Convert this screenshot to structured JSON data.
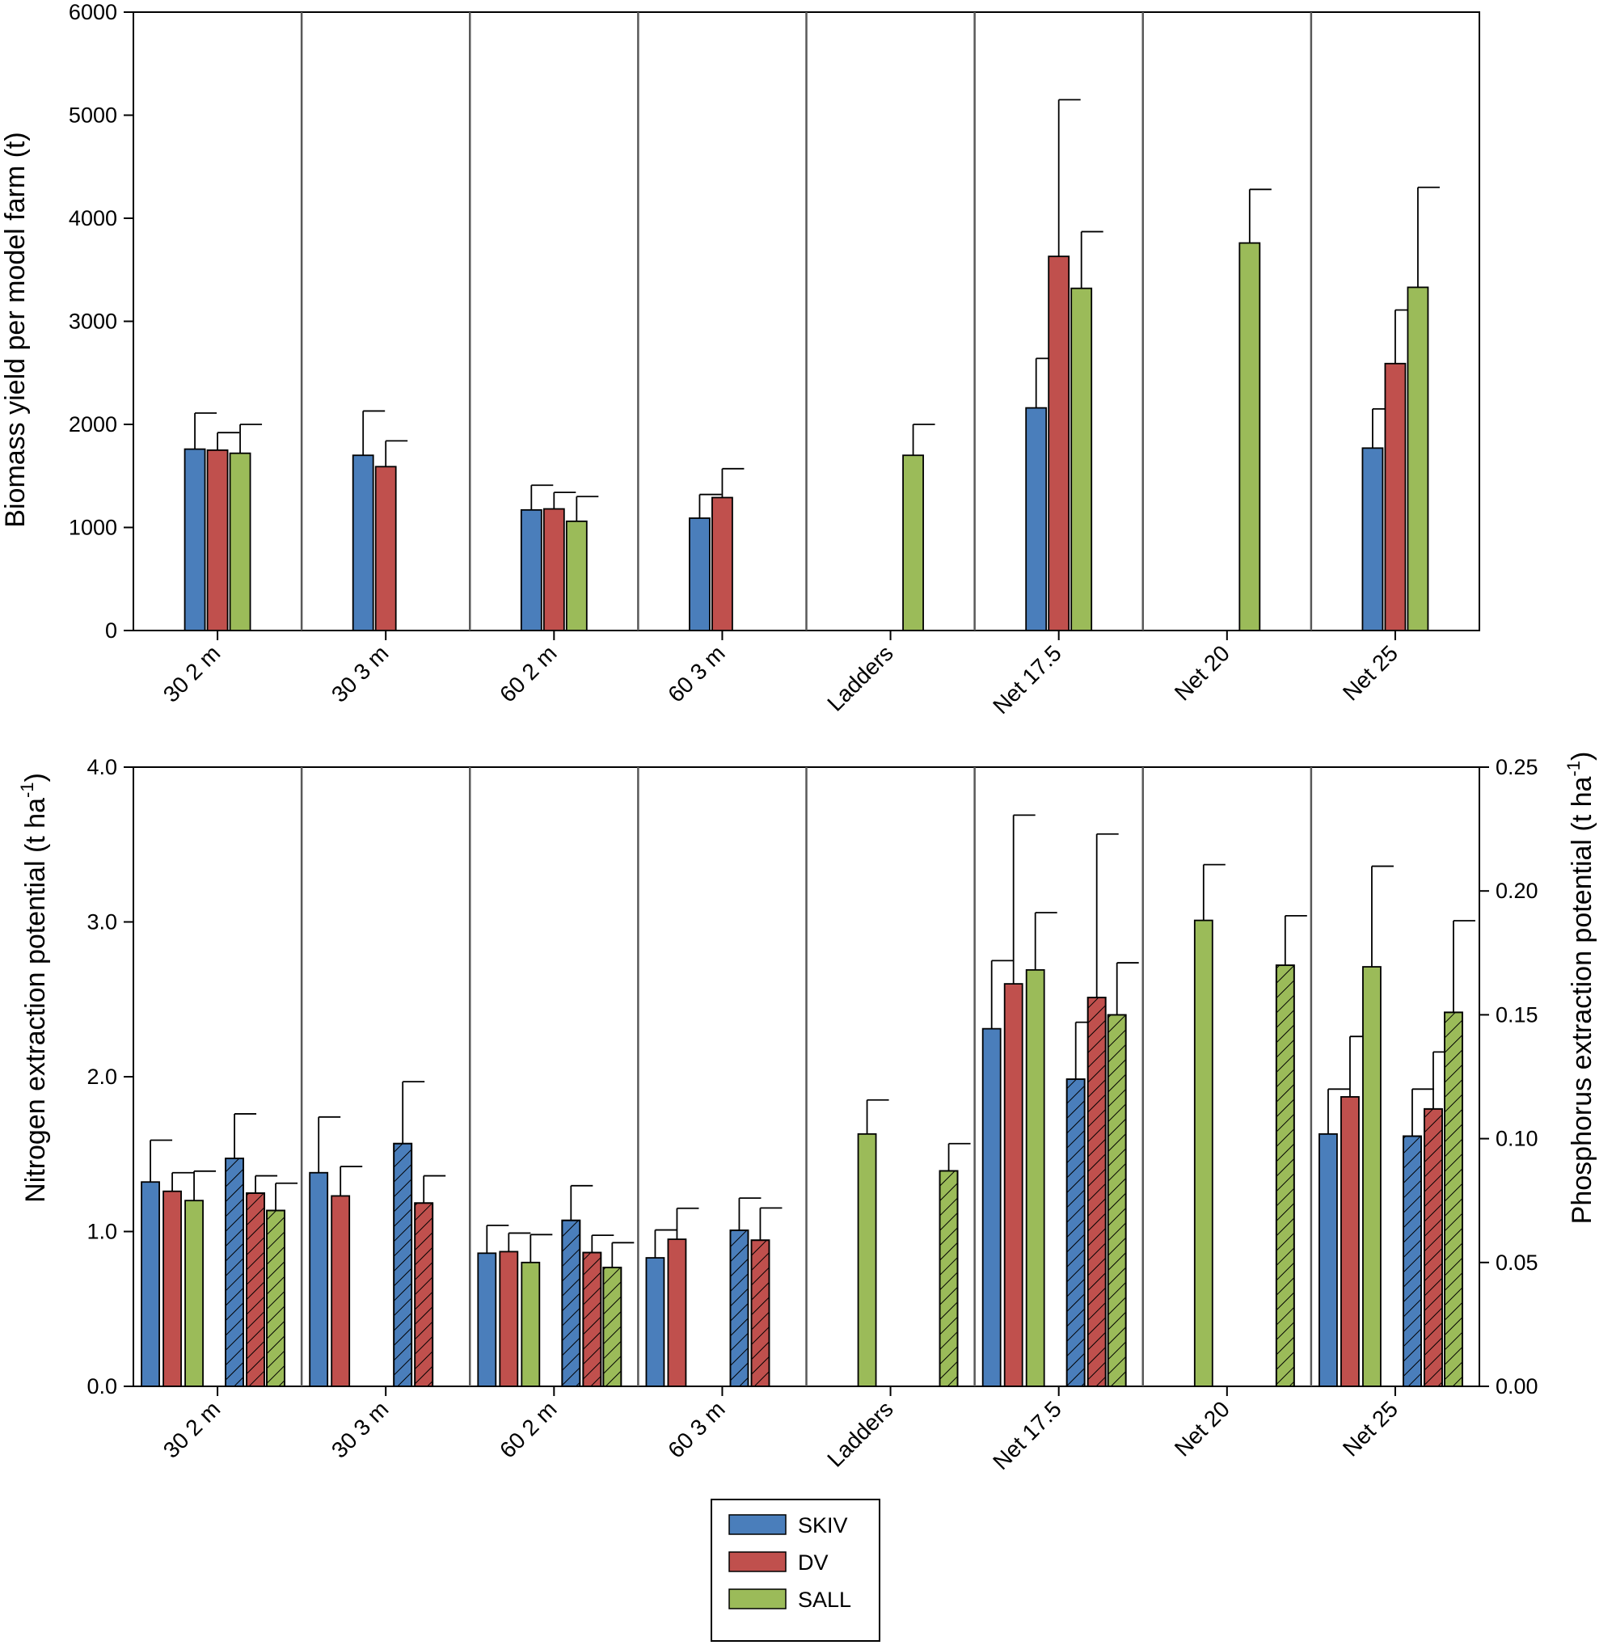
{
  "colors": {
    "SKIV": "#4a7ebb",
    "DV": "#c0504d",
    "SALL": "#9bbb59",
    "frame": "#000000",
    "divider": "#595959"
  },
  "legend": {
    "entries": [
      {
        "key": "SKIV",
        "label": "SKIV"
      },
      {
        "key": "DV",
        "label": "DV"
      },
      {
        "key": "SALL",
        "label": "SALL"
      }
    ]
  },
  "chart_data": [
    {
      "id": "biomass",
      "type": "bar",
      "ylabel": "Biomass yield per model farm (t)",
      "ylim": [
        0,
        6000
      ],
      "yticks": [
        0,
        1000,
        2000,
        3000,
        4000,
        5000,
        6000
      ],
      "ytick_labels": [
        "0",
        "1000",
        "2000",
        "3000",
        "4000",
        "5000",
        "6000"
      ],
      "categories": [
        "30 2 m",
        "30 3 m",
        "60 2 m",
        "60 3 m",
        "Ladders",
        "Net 17.5",
        "Net 20",
        "Net 25"
      ],
      "series": [
        {
          "name": "SKIV",
          "values": [
            1760,
            1700,
            1170,
            1090,
            null,
            2160,
            null,
            1770
          ],
          "errors": [
            350,
            430,
            240,
            230,
            null,
            480,
            null,
            380
          ]
        },
        {
          "name": "DV",
          "values": [
            1750,
            1590,
            1180,
            1290,
            null,
            3630,
            null,
            2590
          ],
          "errors": [
            170,
            250,
            160,
            280,
            null,
            1520,
            null,
            520
          ]
        },
        {
          "name": "SALL",
          "values": [
            1720,
            null,
            1060,
            null,
            1700,
            3320,
            3760,
            3330
          ],
          "errors": [
            280,
            null,
            240,
            null,
            300,
            550,
            520,
            970
          ]
        }
      ]
    },
    {
      "id": "extraction",
      "type": "bar",
      "ylabel": "Nitrogen extraction potential (t ha",
      "ylabel_sup": "-1",
      "ylabel_end": ")",
      "ylabel_right": "Phosphorus extraction potential (t ha",
      "ylabel_right_sup": "-1",
      "ylabel_right_end": ")",
      "ylim": [
        0,
        4.0
      ],
      "yticks": [
        0,
        1,
        2,
        3,
        4
      ],
      "ytick_labels": [
        "0.0",
        "1.0",
        "2.0",
        "3.0",
        "4.0"
      ],
      "ylim_right": [
        0,
        0.25
      ],
      "yticks_right": [
        0,
        0.05,
        0.1,
        0.15,
        0.2,
        0.25
      ],
      "ytick_labels_right": [
        "0.00",
        "0.05",
        "0.10",
        "0.15",
        "0.20",
        "0.25"
      ],
      "categories": [
        "30 2 m",
        "30 3 m",
        "60 2 m",
        "60 3 m",
        "Ladders",
        "Net 17.5",
        "Net 20",
        "Net 25"
      ],
      "series": [
        {
          "name": "SKIV",
          "nutrient": "N",
          "values": [
            1.32,
            1.38,
            0.86,
            0.83,
            null,
            2.31,
            null,
            1.63
          ],
          "errors": [
            0.27,
            0.36,
            0.18,
            0.18,
            null,
            0.44,
            null,
            0.29
          ]
        },
        {
          "name": "DV",
          "nutrient": "N",
          "values": [
            1.26,
            1.23,
            0.87,
            0.95,
            null,
            2.6,
            null,
            1.87
          ],
          "errors": [
            0.12,
            0.19,
            0.12,
            0.2,
            null,
            1.09,
            null,
            0.39
          ]
        },
        {
          "name": "SALL",
          "nutrient": "N",
          "values": [
            1.2,
            null,
            0.8,
            null,
            1.63,
            2.69,
            3.01,
            2.71
          ],
          "errors": [
            0.19,
            null,
            0.18,
            null,
            0.22,
            0.37,
            0.36,
            0.65
          ]
        },
        {
          "name": "SKIV",
          "nutrient": "P",
          "values": [
            0.092,
            0.098,
            0.067,
            0.063,
            null,
            0.124,
            null,
            0.101
          ],
          "errors": [
            0.018,
            0.025,
            0.014,
            0.013,
            null,
            0.023,
            null,
            0.019
          ]
        },
        {
          "name": "DV",
          "nutrient": "P",
          "values": [
            0.078,
            0.074,
            0.054,
            0.059,
            null,
            0.157,
            null,
            0.112
          ],
          "errors": [
            0.007,
            0.011,
            0.007,
            0.013,
            null,
            0.066,
            null,
            0.023
          ]
        },
        {
          "name": "SALL",
          "nutrient": "P",
          "values": [
            0.071,
            null,
            0.048,
            null,
            0.087,
            0.15,
            0.17,
            0.151
          ],
          "errors": [
            0.011,
            null,
            0.01,
            null,
            0.011,
            0.021,
            0.02,
            0.037
          ]
        }
      ]
    }
  ]
}
